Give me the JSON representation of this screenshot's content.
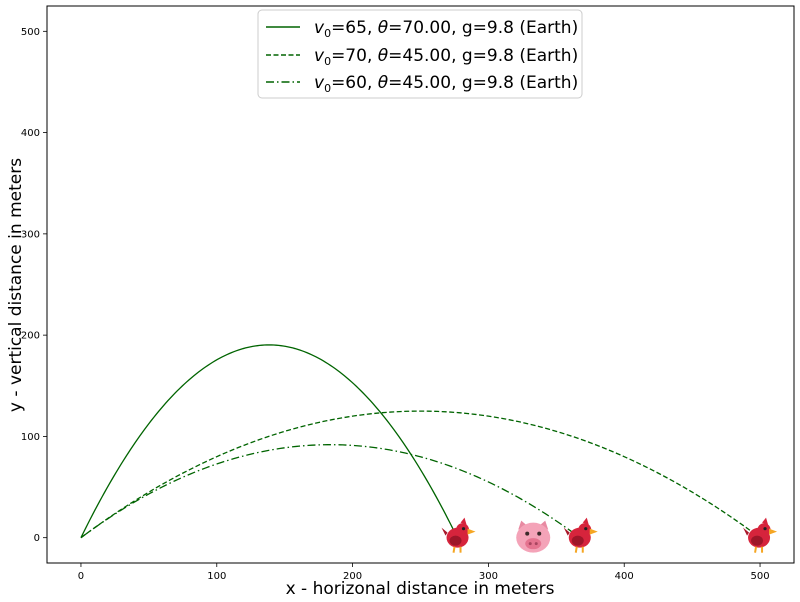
{
  "chart_data": {
    "type": "line",
    "xlabel": "x - horizonal distance in meters",
    "ylabel": "y - vertical distance in meters",
    "xlim": [
      -25,
      525
    ],
    "ylim": [
      -25,
      525
    ],
    "xticks": [
      0,
      100,
      200,
      300,
      400,
      500
    ],
    "yticks": [
      0,
      100,
      200,
      300,
      400,
      500
    ],
    "grid": false,
    "legend_position": "top-center",
    "color": "#006400",
    "series": [
      {
        "name": "v0=65, θ=70.00, g=9.8 (Earth)",
        "v0": 65,
        "theta": 70.0,
        "g": 9.8,
        "linestyle": "solid"
      },
      {
        "name": "v0=70, θ=45.00, g=9.8 (Earth)",
        "v0": 70,
        "theta": 45.0,
        "g": 9.8,
        "linestyle": "dashed"
      },
      {
        "name": "v0=60, θ=45.00, g=9.8 (Earth)",
        "v0": 60,
        "theta": 45.0,
        "g": 9.8,
        "linestyle": "dashdot"
      }
    ],
    "markers": [
      {
        "name": "bird",
        "x": 278,
        "y": 0
      },
      {
        "name": "pig",
        "x": 333,
        "y": 0
      },
      {
        "name": "bird",
        "x": 368,
        "y": 0
      },
      {
        "name": "bird",
        "x": 500,
        "y": 0
      }
    ]
  },
  "legend": {
    "entries": [
      {
        "v_symbol": "v",
        "v_sub": "0",
        "rest_a": "=65, ",
        "theta_symbol": "θ",
        "rest_b": "=70.00, g=9.8 (Earth)"
      },
      {
        "v_symbol": "v",
        "v_sub": "0",
        "rest_a": "=70, ",
        "theta_symbol": "θ",
        "rest_b": "=45.00, g=9.8 (Earth)"
      },
      {
        "v_symbol": "v",
        "v_sub": "0",
        "rest_a": "=60, ",
        "theta_symbol": "θ",
        "rest_b": "=45.00, g=9.8 (Earth)"
      }
    ]
  }
}
